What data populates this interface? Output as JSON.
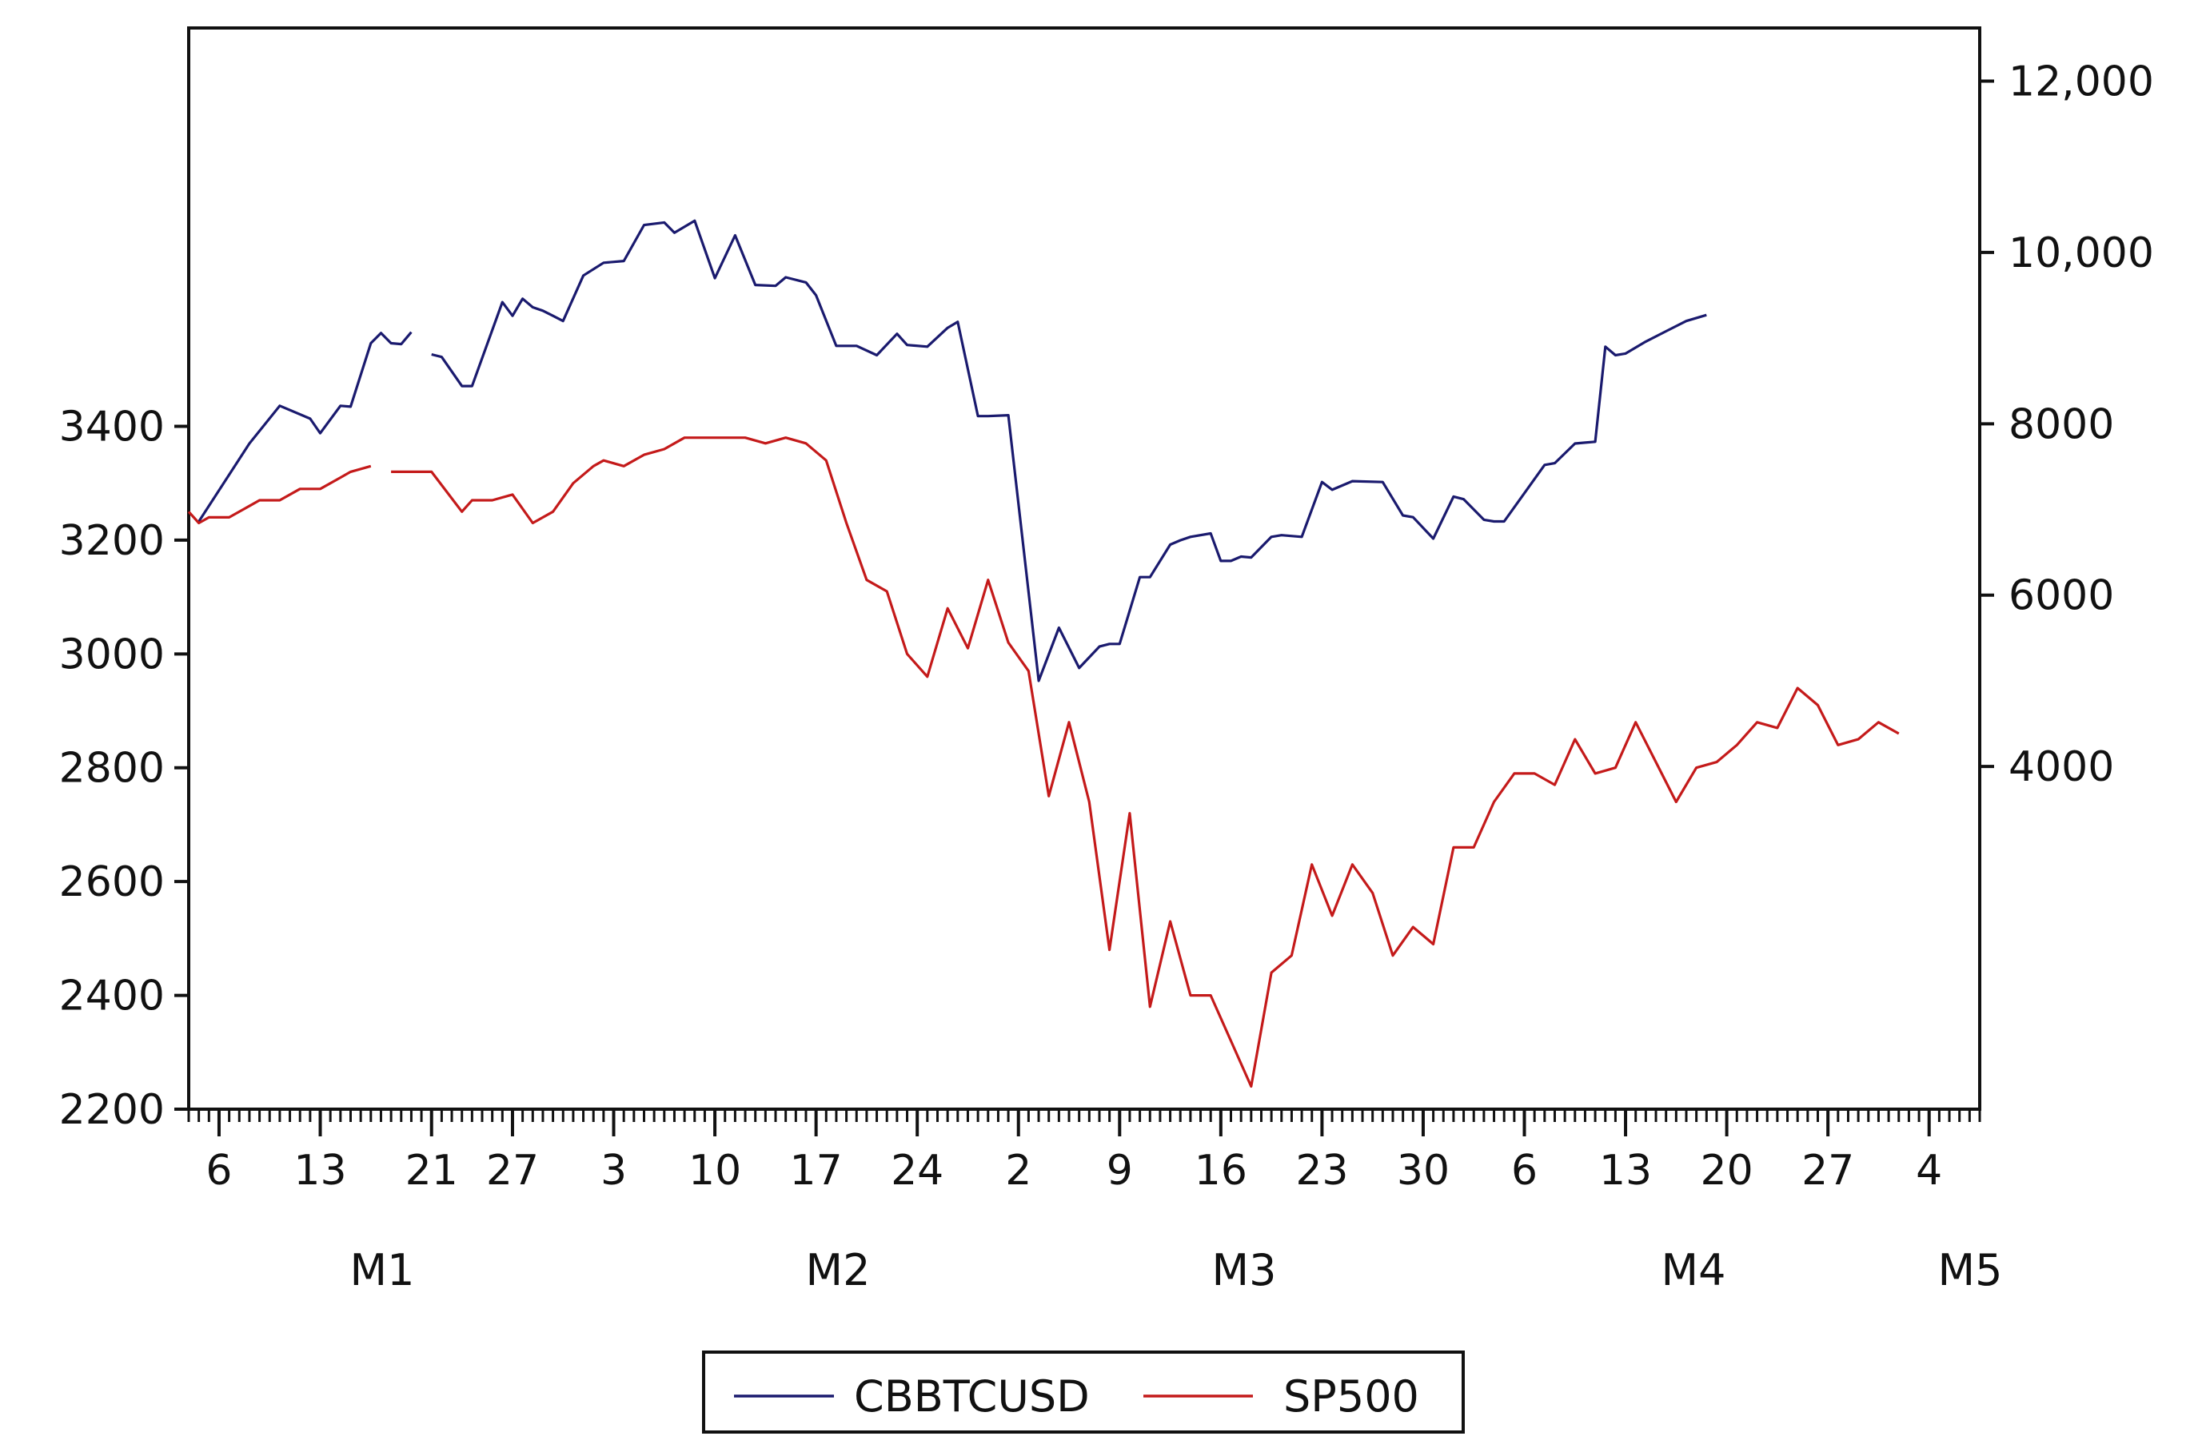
{
  "chart_data": {
    "type": "line",
    "title": "",
    "xlabel": "",
    "x_ticks": [
      "6",
      "13",
      "21",
      "27",
      "3",
      "10",
      "17",
      "24",
      "2",
      "9",
      "16",
      "23",
      "30",
      "6",
      "13",
      "20",
      "27",
      "4"
    ],
    "month_labels": [
      "M1",
      "M2",
      "M3",
      "M4",
      "M5"
    ],
    "y_left": {
      "range": [
        2200,
        4100
      ],
      "ticks": [
        "2200",
        "2400",
        "2600",
        "2800",
        "3000",
        "3200",
        "3400"
      ]
    },
    "y_right": {
      "range": [
        0,
        12620
      ],
      "ticks": [
        "4000",
        "6000",
        "8000",
        "10,000",
        "12,000"
      ]
    },
    "legend": {
      "position": "bottom-center"
    },
    "grid": false,
    "series": [
      {
        "name": "CBBTCUSD",
        "axis": "right",
        "color": "#1a1a6e",
        "segments": [
          [
            [
              1,
              6860
            ],
            [
              6,
              7770
            ],
            [
              9,
              8210
            ],
            [
              12,
              8060
            ],
            [
              13,
              7890
            ],
            [
              15,
              8210
            ],
            [
              16,
              8200
            ],
            [
              18,
              8940
            ],
            [
              19,
              9060
            ],
            [
              20,
              8940
            ],
            [
              21,
              8930
            ],
            [
              22,
              9070
            ]
          ],
          [
            [
              24,
              8810
            ],
            [
              25,
              8780
            ],
            [
              27,
              8440
            ],
            [
              28,
              8440
            ],
            [
              31,
              9420
            ],
            [
              32,
              9260
            ],
            [
              33,
              9460
            ],
            [
              34,
              9360
            ],
            [
              35,
              9320
            ],
            [
              36,
              9260
            ],
            [
              37,
              9200
            ],
            [
              39,
              9730
            ],
            [
              41,
              9880
            ],
            [
              43,
              9900
            ],
            [
              45,
              10320
            ],
            [
              47,
              10350
            ],
            [
              48,
              10230
            ],
            [
              50,
              10370
            ],
            [
              52,
              9700
            ],
            [
              54,
              10200
            ],
            [
              56,
              9620
            ],
            [
              58,
              9610
            ],
            [
              59,
              9710
            ],
            [
              61,
              9650
            ],
            [
              62,
              9500
            ],
            [
              64,
              8910
            ],
            [
              66,
              8910
            ],
            [
              68,
              8800
            ],
            [
              70,
              9050
            ],
            [
              71,
              8920
            ],
            [
              73,
              8900
            ],
            [
              75,
              9120
            ],
            [
              76,
              9190
            ],
            [
              78,
              8090
            ],
            [
              79,
              8090
            ],
            [
              81,
              8100
            ],
            [
              84,
              5000
            ],
            [
              86,
              5620
            ],
            [
              88,
              5150
            ],
            [
              90,
              5400
            ],
            [
              91,
              5430
            ],
            [
              92,
              5430
            ],
            [
              94,
              6210
            ],
            [
              95,
              6210
            ],
            [
              97,
              6590
            ],
            [
              98,
              6640
            ],
            [
              99,
              6680
            ],
            [
              101,
              6720
            ],
            [
              102,
              6400
            ],
            [
              103,
              6400
            ],
            [
              104,
              6450
            ],
            [
              105,
              6440
            ],
            [
              107,
              6680
            ],
            [
              108,
              6700
            ],
            [
              110,
              6680
            ],
            [
              112,
              7320
            ],
            [
              113,
              7230
            ],
            [
              115,
              7330
            ],
            [
              118,
              7320
            ],
            [
              120,
              6930
            ],
            [
              121,
              6910
            ],
            [
              123,
              6660
            ],
            [
              125,
              7150
            ],
            [
              126,
              7120
            ],
            [
              128,
              6880
            ],
            [
              129,
              6860
            ],
            [
              130,
              6860
            ],
            [
              132,
              7190
            ],
            [
              134,
              7520
            ],
            [
              135,
              7540
            ],
            [
              137,
              7770
            ],
            [
              138,
              7780
            ],
            [
              139,
              7790
            ],
            [
              140,
              8900
            ],
            [
              141,
              8800
            ],
            [
              142,
              8820
            ],
            [
              144,
              8960
            ],
            [
              146,
              9080
            ],
            [
              148,
              9200
            ],
            [
              150,
              9270
            ]
          ]
        ]
      },
      {
        "name": "SP500",
        "axis": "left",
        "color": "#c41a1a",
        "segments": [
          [
            [
              0,
              3250
            ],
            [
              1,
              3230
            ],
            [
              2,
              3240
            ],
            [
              4,
              3240
            ],
            [
              6,
              3260
            ],
            [
              7,
              3270
            ],
            [
              9,
              3270
            ],
            [
              11,
              3290
            ],
            [
              13,
              3290
            ],
            [
              15,
              3310
            ],
            [
              16,
              3320
            ],
            [
              18,
              3330
            ]
          ],
          [
            [
              20,
              3320
            ],
            [
              22,
              3320
            ],
            [
              24,
              3320
            ],
            [
              27,
              3250
            ],
            [
              28,
              3270
            ],
            [
              30,
              3270
            ],
            [
              32,
              3280
            ],
            [
              34,
              3230
            ],
            [
              36,
              3250
            ],
            [
              38,
              3300
            ],
            [
              40,
              3330
            ],
            [
              41,
              3340
            ],
            [
              43,
              3330
            ],
            [
              45,
              3350
            ],
            [
              47,
              3360
            ],
            [
              49,
              3380
            ],
            [
              51,
              3380
            ],
            [
              53,
              3380
            ],
            [
              55,
              3380
            ],
            [
              57,
              3370
            ],
            [
              59,
              3380
            ],
            [
              61,
              3370
            ],
            [
              63,
              3340
            ],
            [
              65,
              3230
            ],
            [
              67,
              3130
            ],
            [
              69,
              3110
            ],
            [
              71,
              3000
            ],
            [
              73,
              2960
            ],
            [
              75,
              3080
            ],
            [
              77,
              3010
            ],
            [
              79,
              3130
            ],
            [
              81,
              3020
            ],
            [
              83,
              2970
            ],
            [
              85,
              2750
            ],
            [
              87,
              2880
            ],
            [
              89,
              2740
            ],
            [
              91,
              2480
            ],
            [
              93,
              2720
            ],
            [
              95,
              2380
            ],
            [
              97,
              2530
            ],
            [
              99,
              2400
            ],
            [
              101,
              2400
            ],
            [
              103,
              2320
            ],
            [
              105,
              2240
            ],
            [
              107,
              2440
            ],
            [
              109,
              2470
            ],
            [
              111,
              2630
            ],
            [
              113,
              2540
            ],
            [
              115,
              2630
            ],
            [
              117,
              2580
            ],
            [
              119,
              2470
            ],
            [
              121,
              2520
            ],
            [
              123,
              2490
            ],
            [
              125,
              2660
            ],
            [
              127,
              2660
            ],
            [
              129,
              2740
            ],
            [
              131,
              2790
            ],
            [
              133,
              2790
            ],
            [
              135,
              2770
            ],
            [
              137,
              2850
            ],
            [
              139,
              2790
            ],
            [
              141,
              2800
            ],
            [
              143,
              2880
            ],
            [
              145,
              2810
            ],
            [
              147,
              2740
            ],
            [
              149,
              2800
            ],
            [
              151,
              2810
            ],
            [
              153,
              2840
            ],
            [
              155,
              2880
            ],
            [
              157,
              2870
            ],
            [
              159,
              2940
            ],
            [
              161,
              2910
            ],
            [
              163,
              2840
            ],
            [
              165,
              2850
            ],
            [
              167,
              2880
            ],
            [
              169,
              2860
            ]
          ]
        ]
      }
    ]
  }
}
